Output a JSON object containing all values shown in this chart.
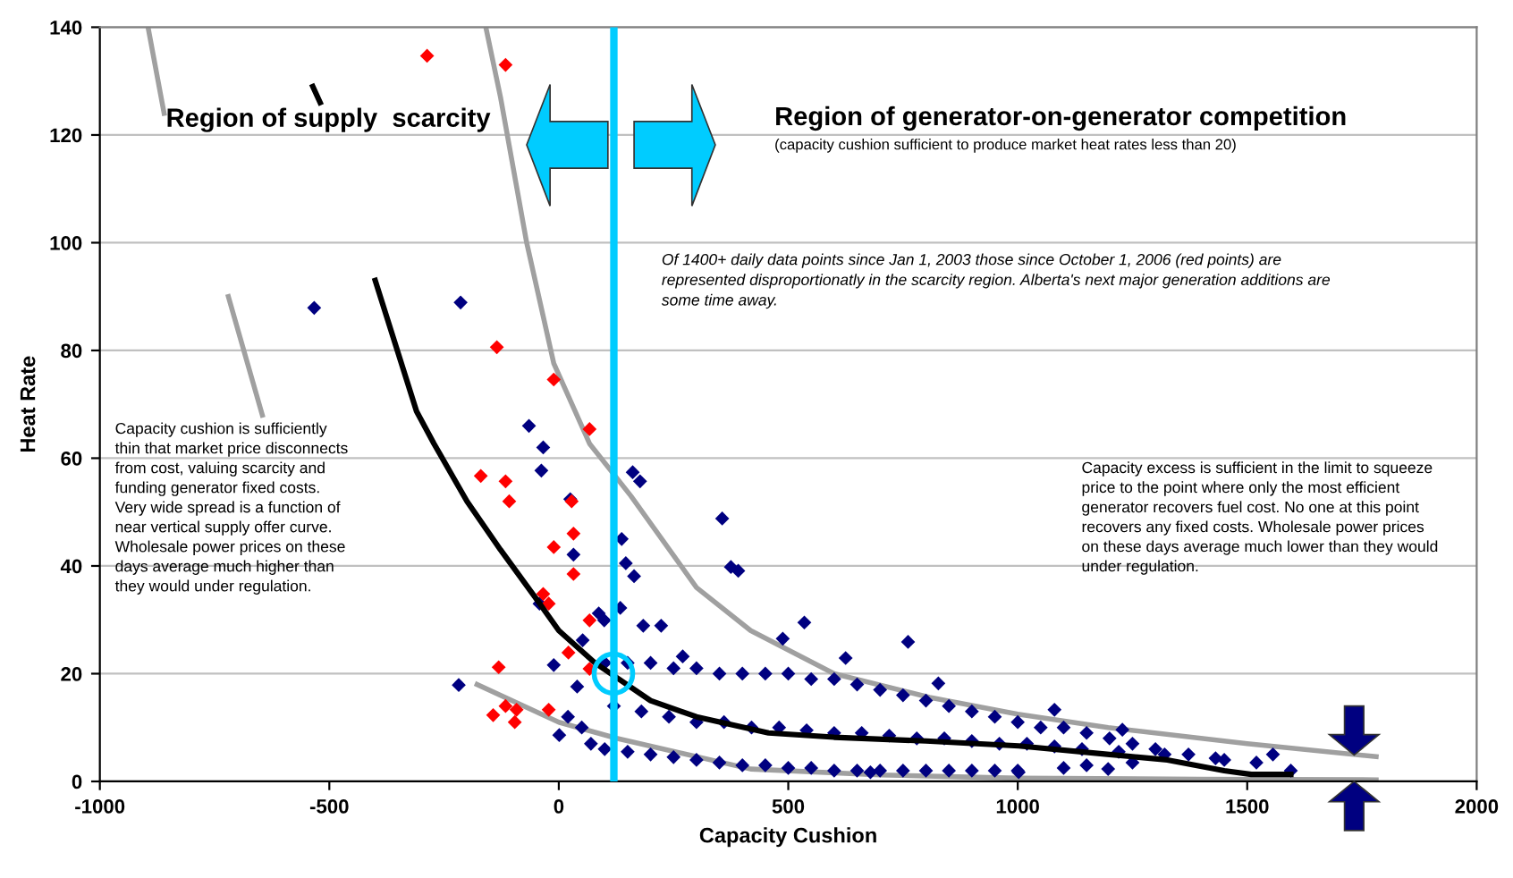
{
  "chart_data": {
    "type": "scatter",
    "xlabel": "Capacity Cushion",
    "ylabel": "Heat Rate",
    "xlim": [
      -1000,
      2000
    ],
    "xticks": [
      -1000,
      -500,
      0,
      500,
      1000,
      1500,
      2000
    ],
    "ylim": [
      0,
      140
    ],
    "yticks": [
      0,
      20,
      40,
      60,
      80,
      100,
      120,
      140
    ],
    "grid": "y",
    "ref_lines": [
      {
        "axis": "x",
        "value": 120,
        "color": "#00ccff"
      }
    ],
    "series": [
      {
        "type": "line",
        "color": "#a0a0a0",
        "marker": "none",
        "x": [
          -895,
          -860,
          -801,
          -720,
          -646,
          -369,
          -178,
          0,
          126,
          418,
          700,
          1000,
          1400,
          1781
        ],
        "values": [
          140,
          124,
          null,
          90,
          68,
          null,
          18,
          11,
          8,
          2.3,
          1.2,
          0.6,
          0.4,
          0.3
        ]
      },
      {
        "type": "line",
        "color": "#a0a0a0",
        "marker": "none",
        "x": [
          -159,
          -127,
          -70,
          -11,
          67,
          157,
          300,
          418,
          600,
          808,
          1000,
          1197,
          1500,
          1781
        ],
        "values": [
          140,
          127,
          100,
          77.6,
          62.7,
          53,
          36,
          28,
          20,
          15.6,
          12.5,
          10,
          7,
          4.6
        ]
      },
      {
        "type": "line",
        "color": "#000000",
        "marker": "none",
        "x": [
          -536,
          -520,
          -478,
          -400,
          -310,
          -272,
          -200,
          -127,
          -50,
          0,
          79,
          200,
          300,
          457,
          600,
          800,
          1002,
          1200,
          1326,
          1450,
          1509,
          1595
        ],
        "values": [
          129,
          126,
          null,
          93,
          68.7,
          62.7,
          52,
          43,
          34,
          28,
          22,
          15,
          12,
          9,
          8.2,
          7.5,
          6.6,
          5,
          4,
          2,
          1.3,
          1.3
        ]
      },
      {
        "color": "#000080",
        "marker": "diamond",
        "x": [
          -533,
          -214,
          -65,
          -34,
          -38,
          25,
          32,
          161,
          177,
          137,
          146,
          164,
          356,
          375,
          391,
          -218,
          -42,
          87,
          99,
          52,
          -11,
          40,
          1,
          134,
          184,
          223,
          270,
          535,
          488,
          761,
          625,
          827,
          1080,
          1228,
          1431,
          1556,
          1595,
          1372,
          1197,
          1002,
          679,
          100,
          150,
          200,
          250,
          300,
          350,
          400,
          450,
          500,
          550,
          600,
          650,
          700,
          750,
          800,
          850,
          900,
          950,
          1000,
          1050,
          1100,
          1150,
          1200,
          1250,
          1300,
          100,
          150,
          200,
          250,
          300,
          350,
          400,
          450,
          500,
          550,
          600,
          650,
          700,
          750,
          800,
          850,
          900,
          950,
          1000,
          1100,
          1150,
          1250,
          120,
          180,
          240,
          300,
          360,
          420,
          480,
          540,
          600,
          660,
          720,
          780,
          840,
          900,
          960,
          1020,
          1080,
          1140,
          1220,
          1320,
          1450,
          1520,
          50,
          20,
          70
        ],
        "values": [
          87.9,
          88.9,
          66,
          62,
          57.7,
          52.4,
          42.1,
          57.4,
          55.7,
          45,
          40.5,
          38.1,
          48.8,
          39.8,
          39.1,
          17.9,
          33,
          31.2,
          29.9,
          26.2,
          21.6,
          17.6,
          8.6,
          32.2,
          28.9,
          28.9,
          23.2,
          29.5,
          26.5,
          25.9,
          22.9,
          18.2,
          13.3,
          9.6,
          4.3,
          5,
          2,
          5,
          2.3,
          1.7,
          1.7,
          22,
          22,
          22,
          21,
          21,
          20,
          20,
          20,
          20,
          19,
          19,
          18,
          17,
          16,
          15,
          14,
          13,
          12,
          11,
          10,
          10,
          9,
          8,
          7,
          6,
          6,
          5.5,
          5,
          4.5,
          4,
          3.5,
          3,
          3,
          2.5,
          2.5,
          2,
          2,
          2,
          2,
          2,
          2,
          2,
          2,
          2,
          2.5,
          3,
          3.5,
          14,
          13,
          12,
          11,
          11,
          10,
          10,
          9.5,
          9,
          9,
          8.5,
          8,
          8,
          7.5,
          7,
          7,
          6.5,
          6,
          5.5,
          5,
          4,
          3.5,
          10,
          12,
          7
        ]
      },
      {
        "color": "#ff0000",
        "marker": "diamond",
        "x": [
          -287,
          -116,
          -135,
          -11,
          67,
          -170,
          -116,
          -108,
          28,
          32,
          -11,
          32,
          -34,
          -22,
          67,
          21,
          67,
          -131,
          -116,
          -143,
          -92,
          -96,
          -22
        ],
        "values": [
          134.7,
          133,
          80.6,
          74.6,
          65.4,
          56.7,
          55.7,
          52,
          52,
          46,
          43.5,
          38.5,
          34.8,
          33,
          29.9,
          23.9,
          20.9,
          21.2,
          14,
          12.3,
          13.3,
          11,
          13.3
        ]
      }
    ],
    "annotations": [
      "Region of supply  scarcity",
      "Region of generator-on-generator competition",
      "(capacity cushion sufficient to produce market heat rates less than 20)",
      "Of 1400+ daily data points since Jan 1, 2003 those since October 1, 2006 (red points) are\nrepresented disproportionatly in the scarcity region. Alberta's next major generation additions are\nsome time away.",
      "Capacity cushion is sufficiently\nthin that market price disconnects\nfrom cost, valuing scarcity and\nfunding generator fixed costs.\nVery wide spread is a function of\nnear vertical supply offer curve.\nWholesale power prices on these\ndays average much higher than\nthey would under regulation.",
      "Capacity excess is sufficient in the limit to squeeze\nprice to the point where only the most efficient\ngenerator recovers fuel cost. No one at this point\nrecovers any fixed costs. Wholesale power prices\non these days average much lower than they would\nunder regulation."
    ]
  }
}
